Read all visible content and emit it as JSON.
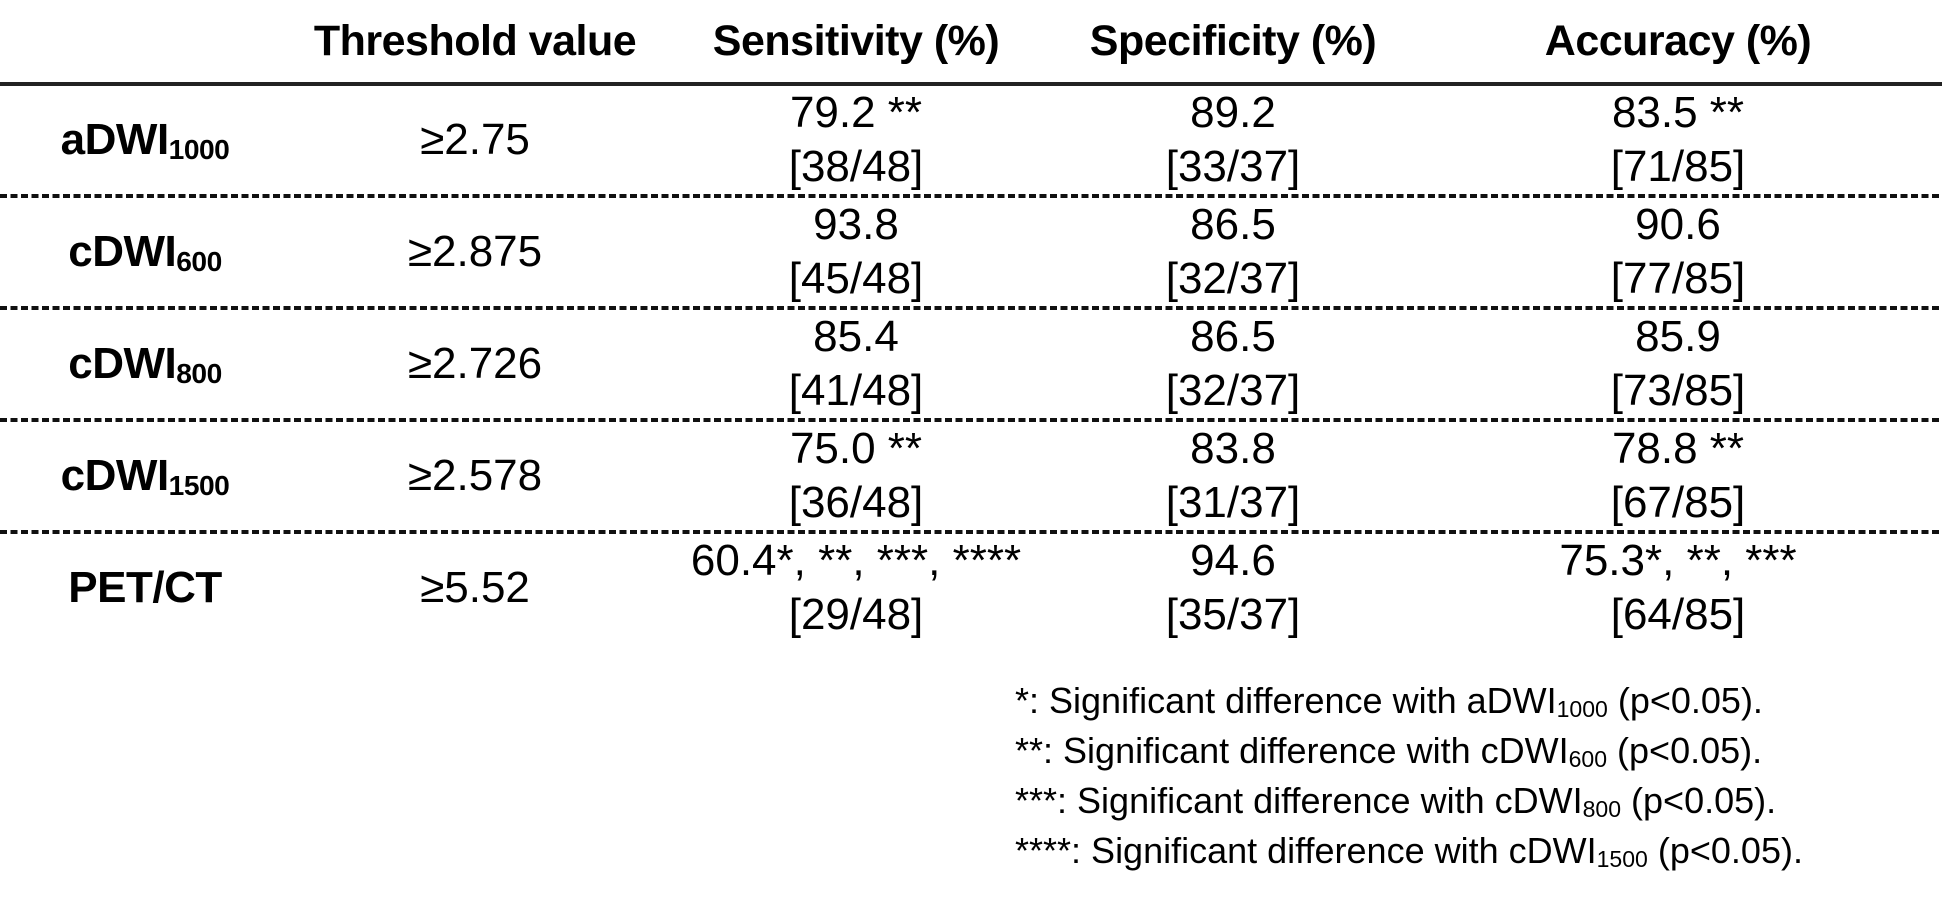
{
  "colors": {
    "background": "#ffffff",
    "text": "#000000",
    "header_rule": "#222222",
    "row_rule_dashed": "#111111"
  },
  "table": {
    "columns": [
      {
        "label": ""
      },
      {
        "label": "Threshold value"
      },
      {
        "label": "Sensitivity (%)"
      },
      {
        "label": "Specificity (%)"
      },
      {
        "label": "Accuracy (%)"
      }
    ],
    "rows": [
      {
        "label": {
          "base": "aDWI",
          "sub": "1000"
        },
        "threshold": "≥2.75",
        "sensitivity": {
          "value": "79.2 **",
          "fraction": "[38/48]"
        },
        "specificity": {
          "value": "89.2",
          "fraction": "[33/37]"
        },
        "accuracy": {
          "value": "83.5 **",
          "fraction": "[71/85]"
        }
      },
      {
        "label": {
          "base": "cDWI",
          "sub": "600"
        },
        "threshold": "≥2.875",
        "sensitivity": {
          "value": "93.8",
          "fraction": "[45/48]"
        },
        "specificity": {
          "value": "86.5",
          "fraction": "[32/37]"
        },
        "accuracy": {
          "value": "90.6",
          "fraction": "[77/85]"
        }
      },
      {
        "label": {
          "base": "cDWI",
          "sub": "800"
        },
        "threshold": "≥2.726",
        "sensitivity": {
          "value": "85.4",
          "fraction": "[41/48]"
        },
        "specificity": {
          "value": "86.5",
          "fraction": "[32/37]"
        },
        "accuracy": {
          "value": "85.9",
          "fraction": "[73/85]"
        }
      },
      {
        "label": {
          "base": "cDWI",
          "sub": "1500"
        },
        "threshold": "≥2.578",
        "sensitivity": {
          "value": "75.0 **",
          "fraction": "[36/48]"
        },
        "specificity": {
          "value": "83.8",
          "fraction": "[31/37]"
        },
        "accuracy": {
          "value": "78.8 **",
          "fraction": "[67/85]"
        }
      },
      {
        "label": {
          "base": "PET/CT",
          "sub": ""
        },
        "threshold": "≥5.52",
        "sensitivity": {
          "value": "60.4*, **, ***, ****",
          "fraction": "[29/48]"
        },
        "specificity": {
          "value": "94.6",
          "fraction": "[35/37]"
        },
        "accuracy": {
          "value": "75.3*, **, ***",
          "fraction": "[64/85]"
        }
      }
    ]
  },
  "footnotes": [
    {
      "marker": "*",
      "text": ": Significant difference with ",
      "base": "aDWI",
      "sub": "1000",
      "suffix": " (p<0.05)."
    },
    {
      "marker": "**",
      "text": ": Significant difference with ",
      "base": "cDWI",
      "sub": "600",
      "suffix": " (p<0.05)."
    },
    {
      "marker": "***",
      "text": ": Significant difference with ",
      "base": "cDWI",
      "sub": "800",
      "suffix": " (p<0.05)."
    },
    {
      "marker": "****",
      "text": ": Significant difference with ",
      "base": "cDWI",
      "sub": "1500",
      "suffix": " (p<0.05)."
    }
  ]
}
